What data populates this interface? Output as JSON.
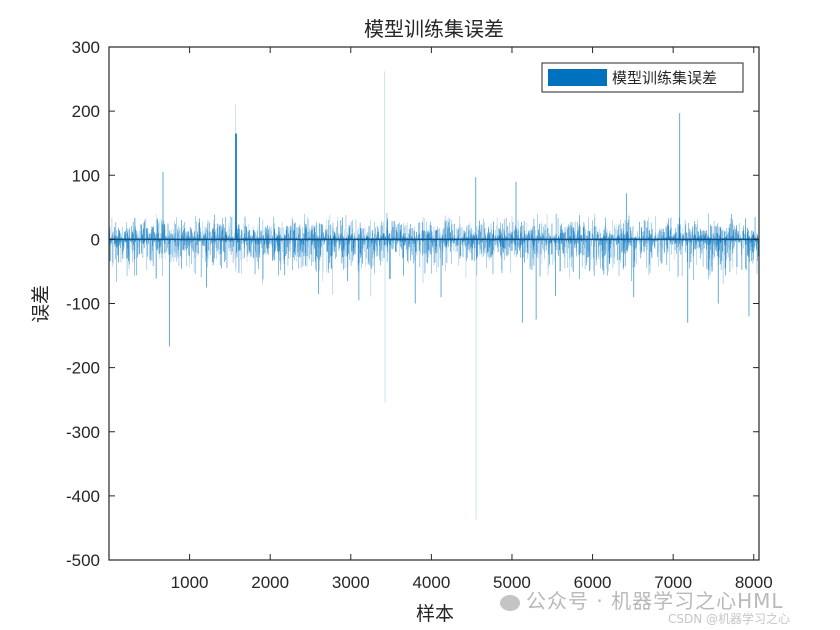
{
  "chart_data": {
    "type": "bar",
    "title": "模型训练集误差",
    "xlabel": "样本",
    "ylabel": "误差",
    "xlim": [
      0,
      8065
    ],
    "ylim": [
      -500,
      300
    ],
    "x_ticks": [
      1000,
      2000,
      3000,
      4000,
      5000,
      6000,
      7000,
      8000
    ],
    "x_tick_labels": [
      "1000",
      "2000",
      "3000",
      "4000",
      "5000",
      "6000",
      "7000",
      "8000"
    ],
    "y_ticks": [
      300,
      200,
      100,
      0,
      -100,
      -200,
      -300,
      -400,
      -500
    ],
    "y_tick_labels": [
      "300",
      "200",
      "100",
      "0",
      "-100",
      "-200",
      "-300",
      "-400",
      "-500"
    ],
    "grid": false,
    "legend": {
      "position": "upper-right",
      "entries": [
        "模型训练集误差"
      ]
    },
    "series": [
      {
        "name": "模型训练集误差",
        "color": "#0072BD",
        "n_samples": 8065,
        "notable_spikes": [
          {
            "x": 670,
            "y": 105
          },
          {
            "x": 750,
            "y": -167
          },
          {
            "x": 1210,
            "y": -75
          },
          {
            "x": 1570,
            "y": 210
          },
          {
            "x": 1580,
            "y": 165
          },
          {
            "x": 2600,
            "y": -85
          },
          {
            "x": 2960,
            "y": -65
          },
          {
            "x": 3100,
            "y": -95
          },
          {
            "x": 3420,
            "y": 262
          },
          {
            "x": 3425,
            "y": -255
          },
          {
            "x": 3800,
            "y": -100
          },
          {
            "x": 4120,
            "y": -90
          },
          {
            "x": 4550,
            "y": 97
          },
          {
            "x": 4555,
            "y": -437
          },
          {
            "x": 5050,
            "y": 90
          },
          {
            "x": 5130,
            "y": -130
          },
          {
            "x": 5300,
            "y": -125
          },
          {
            "x": 5540,
            "y": -88
          },
          {
            "x": 6420,
            "y": 72
          },
          {
            "x": 6510,
            "y": -90
          },
          {
            "x": 7080,
            "y": 197
          },
          {
            "x": 7180,
            "y": -130
          },
          {
            "x": 7560,
            "y": -100
          },
          {
            "x": 7940,
            "y": -120
          }
        ],
        "typical_band": {
          "upper": 30,
          "lower": -45
        }
      }
    ]
  },
  "colors": {
    "bar": "#0072BD",
    "axis": "#262626",
    "background": "#ffffff"
  },
  "watermark": {
    "line1": "公众号 · 机器学习之心HML",
    "line2": "CSDN @机器学习之心"
  }
}
